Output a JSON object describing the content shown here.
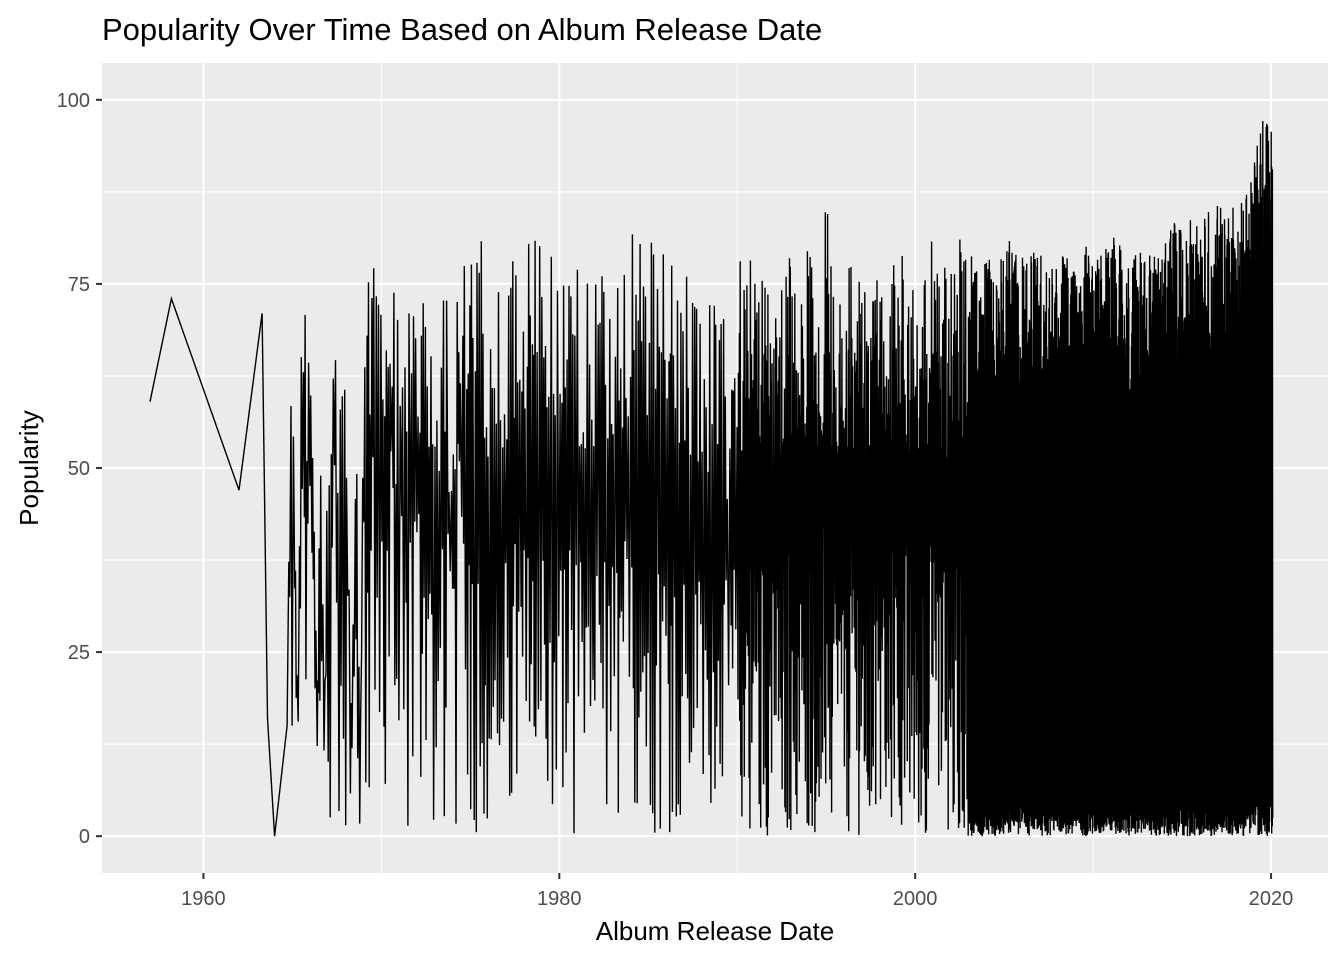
{
  "chart_data": {
    "type": "line",
    "title": "Popularity Over Time Based on Album Release Date",
    "xlabel": "Album Release Date",
    "ylabel": "Popularity",
    "xlim": [
      1954.3,
      2023.2
    ],
    "ylim": [
      -5,
      105
    ],
    "x_ticks": [
      1960,
      1980,
      2000,
      2020
    ],
    "x_tick_labels": [
      "1960",
      "1980",
      "2000",
      "2020"
    ],
    "y_ticks": [
      0,
      25,
      50,
      75,
      100
    ],
    "y_tick_labels": [
      "0",
      "25",
      "50",
      "75",
      "100"
    ],
    "grid": true,
    "legend": "none",
    "line_color": "#000000",
    "panel_color": "#ebebeb",
    "series": [
      {
        "x": [
          1957.0,
          1958.2,
          1962.0,
          1963.3,
          1963.6,
          1964.0,
          1964.7,
          1964.9,
          1965.1,
          1965.3,
          1965.5,
          1965.8,
          1966.0,
          1966.2,
          1966.4,
          1966.6,
          1966.8,
          1967.0,
          1967.2,
          1967.4,
          1967.6,
          1967.9,
          1968.1,
          1968.3,
          1968.6,
          1968.8,
          1969.0,
          1969.3,
          1969.6,
          1969.9,
          1970.2,
          1970.5,
          1970.8,
          1971.1,
          1971.4,
          1971.7,
          1972.0,
          1972.3,
          1972.6,
          1972.9,
          1973.2,
          1973.5,
          1973.8,
          1974.1,
          1974.4,
          1974.7,
          1975.0,
          1975.4,
          1975.8,
          1976.2,
          1976.6,
          1977.0,
          1977.4,
          1977.8,
          1978.2,
          1978.6,
          1979.0,
          1979.4,
          1979.8,
          1980.2,
          1980.6,
          1981.0,
          1981.4,
          1981.8,
          1982.2,
          1982.6,
          1983.0,
          1983.5,
          1984.0,
          1984.5,
          1985.0,
          1985.5,
          1986.0,
          1986.5,
          1987.0,
          1987.5,
          1988.0,
          1988.5,
          1989.0,
          1989.5,
          1990.0,
          1990.5,
          1991.0,
          1991.5,
          1992.0,
          1992.5,
          1993.0,
          1993.5,
          1994.0,
          1994.5,
          1995.0,
          1995.5,
          1996.0,
          1996.5,
          1997.0,
          1997.5,
          1998.0,
          1998.5,
          1999.0,
          1999.5,
          2000.0,
          2000.5,
          2001.0,
          2001.5,
          2002.0,
          2002.5,
          2003.0,
          2003.5,
          2004.0,
          2004.5,
          2005.0,
          2005.5,
          2006.0,
          2006.5,
          2007.0,
          2007.5,
          2008.0,
          2008.5,
          2009.0,
          2009.5,
          2010.0,
          2010.5,
          2011.0,
          2011.5,
          2012.0,
          2012.5,
          2013.0,
          2013.5,
          2014.0,
          2014.5,
          2015.0,
          2015.5,
          2016.0,
          2016.5,
          2017.0,
          2017.5,
          2018.0,
          2018.3,
          2018.6,
          2018.9,
          2019.2,
          2019.5,
          2019.7,
          2019.9,
          2020.1
        ],
        "y_high": [
          59,
          73,
          47,
          71,
          16,
          0,
          15,
          74,
          70,
          11,
          72,
          76,
          73,
          56,
          14,
          71,
          13,
          71,
          66,
          71,
          54,
          73,
          61,
          18,
          71,
          5,
          76,
          78,
          80,
          79,
          78,
          81,
          72,
          79,
          81,
          77,
          76,
          74,
          74,
          73,
          74,
          81,
          71,
          72,
          79,
          78,
          80,
          84,
          79,
          73,
          78,
          81,
          83,
          82,
          80,
          83,
          82,
          83,
          83,
          80,
          83,
          82,
          79,
          83,
          76,
          81,
          79,
          83,
          82,
          81,
          83,
          79,
          81,
          76,
          81,
          78,
          74,
          73,
          72,
          69,
          81,
          76,
          81,
          78,
          73,
          79,
          81,
          76,
          81,
          75,
          90,
          73,
          78,
          81,
          80,
          76,
          77,
          81,
          78,
          81,
          76,
          77,
          82,
          77,
          79,
          83,
          83,
          78,
          79,
          77,
          81,
          81,
          79,
          80,
          80,
          76,
          79,
          79,
          80,
          81,
          79,
          80,
          81,
          82,
          77,
          81,
          79,
          80,
          81,
          85,
          82,
          84,
          83,
          85,
          86,
          84,
          87,
          87,
          89,
          90,
          94,
          98,
          100,
          98,
          95
        ],
        "y_low": [
          59,
          73,
          47,
          71,
          16,
          0,
          15,
          11,
          2,
          11,
          1,
          2,
          14,
          13,
          11,
          0,
          13,
          0,
          3,
          5,
          0,
          2,
          0,
          0,
          0,
          0,
          0,
          0,
          0,
          0,
          0,
          0,
          0,
          0,
          0,
          0,
          0,
          0,
          0,
          0,
          0,
          0,
          0,
          0,
          0,
          0,
          0,
          0,
          0,
          0,
          0,
          0,
          0,
          0,
          0,
          0,
          0,
          0,
          0,
          0,
          0,
          0,
          0,
          0,
          0,
          0,
          0,
          0,
          0,
          0,
          0,
          0,
          0,
          0,
          0,
          0,
          0,
          0,
          0,
          0,
          0,
          0,
          0,
          0,
          0,
          0,
          0,
          0,
          0,
          0,
          0,
          0,
          0,
          0,
          0,
          0,
          0,
          0,
          0,
          0,
          0,
          0,
          0,
          0,
          0,
          0,
          0,
          0,
          0,
          0,
          0,
          0,
          0,
          0,
          0,
          0,
          0,
          0,
          0,
          0,
          0,
          0,
          0,
          0,
          0,
          0,
          0,
          0,
          0,
          0,
          0,
          0,
          0,
          0,
          0,
          0,
          0,
          0,
          0,
          0,
          0,
          0,
          0,
          0,
          0
        ]
      }
    ]
  }
}
